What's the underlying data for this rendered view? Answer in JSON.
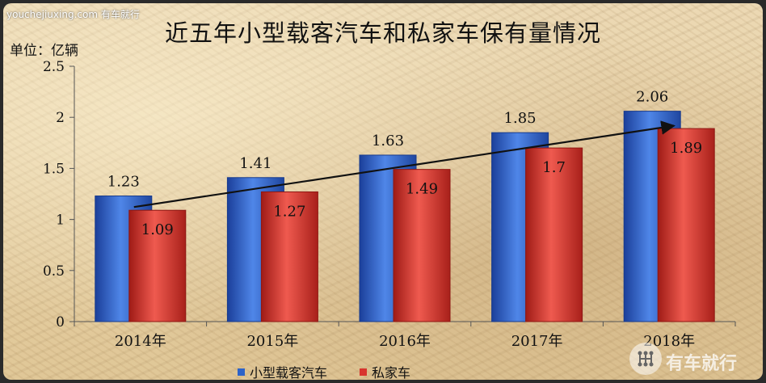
{
  "watermark": "youchejiuxing.com 有车就行",
  "logo_text": "有车就行",
  "colors": {
    "series1": "#2d63c8",
    "series2": "#d8352e",
    "axis": "#444444",
    "arrow": "#111111"
  },
  "chart_data": {
    "type": "bar",
    "title": "近五年小型载客汽车和私家车保有量情况",
    "unit_label": "单位：亿辆",
    "categories": [
      "2014年",
      "2015年",
      "2016年",
      "2017年",
      "2018年"
    ],
    "series": [
      {
        "name": "小型载客汽车",
        "values": [
          1.23,
          1.41,
          1.63,
          1.85,
          2.06
        ]
      },
      {
        "name": "私家车",
        "values": [
          1.09,
          1.27,
          1.49,
          1.7,
          1.89
        ]
      }
    ],
    "y_ticks": [
      "0",
      "0.5",
      "1",
      "1.5",
      "2",
      "2.5"
    ],
    "ylim": [
      0,
      2.5
    ],
    "grid": false,
    "legend_position": "bottom",
    "annotation": "trend arrow from 2014 to 2018"
  }
}
